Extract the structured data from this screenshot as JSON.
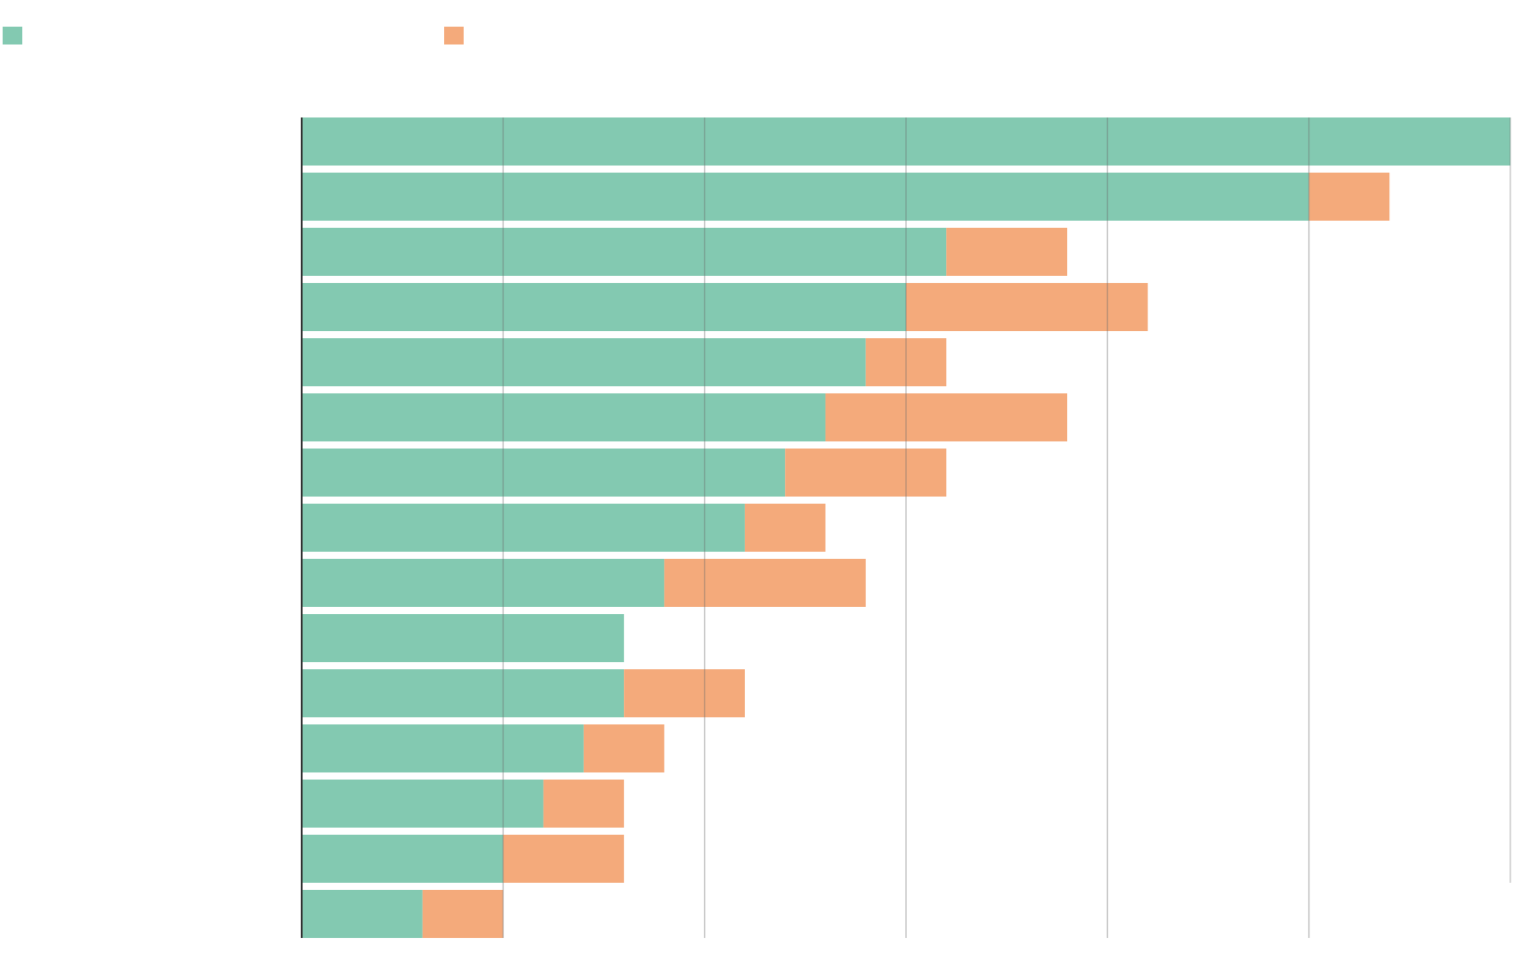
{
  "chart_data": {
    "type": "bar",
    "orientation": "horizontal",
    "stacked": true,
    "title": "",
    "xlabel": "",
    "ylabel": "",
    "categories": [
      "",
      "",
      "",
      "",
      "",
      "",
      "",
      "",
      "",
      "",
      "",
      "",
      "",
      "",
      ""
    ],
    "series": [
      {
        "name": "",
        "color": "#83c9b1",
        "values": [
          30,
          25,
          16,
          15,
          14,
          13,
          12,
          11,
          9,
          8,
          8,
          7,
          6,
          5,
          3
        ]
      },
      {
        "name": "",
        "color": "#f4aa7b",
        "values": [
          0,
          2,
          3,
          6,
          2,
          6,
          4,
          2,
          5,
          0,
          3,
          2,
          2,
          3,
          2
        ]
      }
    ],
    "xlim": [
      0,
      30
    ],
    "x_gridlines": [
      5,
      10,
      15,
      20,
      25,
      30
    ],
    "grid": true,
    "legend_position": "top-left",
    "colors": {
      "series_1": "#83c9b1",
      "series_2": "#f4aa7b",
      "gridline": "#6b6b6b",
      "axis": "#333333"
    }
  }
}
